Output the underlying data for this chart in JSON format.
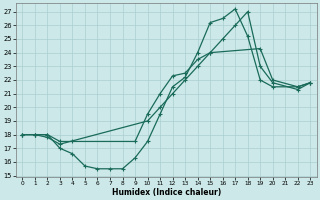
{
  "xlabel": "Humidex (Indice chaleur)",
  "background_color": "#cce8e8",
  "grid_color": "#aacfcf",
  "line_color": "#1a6b5a",
  "xlim": [
    -0.5,
    23.5
  ],
  "ylim": [
    14.9,
    27.6
  ],
  "xticks": [
    0,
    1,
    2,
    3,
    4,
    5,
    6,
    7,
    8,
    9,
    10,
    11,
    12,
    13,
    14,
    15,
    16,
    17,
    18,
    19,
    20,
    21,
    22,
    23
  ],
  "yticks": [
    15,
    16,
    17,
    18,
    19,
    20,
    21,
    22,
    23,
    24,
    25,
    26,
    27
  ],
  "line1_x": [
    0,
    1,
    2,
    3,
    4,
    5,
    6,
    7,
    8,
    9,
    10,
    11,
    12,
    13,
    14,
    15,
    16,
    17,
    18,
    19,
    20,
    22,
    23
  ],
  "line1_y": [
    18.0,
    18.0,
    18.0,
    17.0,
    16.6,
    15.7,
    15.5,
    15.5,
    15.5,
    16.3,
    17.5,
    19.5,
    21.5,
    22.2,
    24.0,
    26.2,
    26.5,
    27.2,
    25.2,
    22.0,
    21.5,
    21.5,
    21.8
  ],
  "line2_x": [
    0,
    1,
    2,
    3,
    4,
    9,
    10,
    11,
    12,
    13,
    14,
    15,
    19,
    20,
    22,
    23
  ],
  "line2_y": [
    18.0,
    18.0,
    18.0,
    17.5,
    17.5,
    17.5,
    19.5,
    21.0,
    22.3,
    22.5,
    23.5,
    24.0,
    24.3,
    22.0,
    21.5,
    21.8
  ],
  "line3_x": [
    0,
    1,
    2,
    3,
    10,
    11,
    12,
    13,
    14,
    15,
    16,
    17,
    18,
    19,
    20,
    22,
    23
  ],
  "line3_y": [
    18.0,
    18.0,
    17.8,
    17.3,
    19.0,
    20.0,
    21.0,
    22.0,
    23.0,
    24.0,
    25.0,
    26.0,
    27.0,
    23.0,
    21.8,
    21.3,
    21.8
  ]
}
